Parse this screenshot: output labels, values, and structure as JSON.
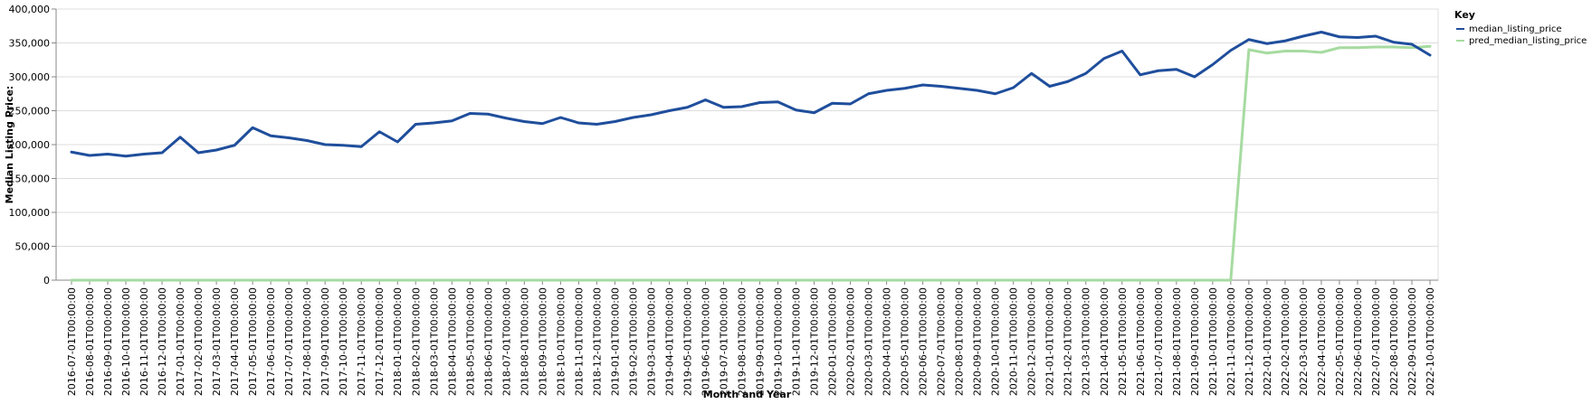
{
  "chart_data": {
    "type": "line",
    "x": [
      "2016-07-01T00:00:00",
      "2016-08-01T00:00:00",
      "2016-09-01T00:00:00",
      "2016-10-01T00:00:00",
      "2016-11-01T00:00:00",
      "2016-12-01T00:00:00",
      "2017-01-01T00:00:00",
      "2017-02-01T00:00:00",
      "2017-03-01T00:00:00",
      "2017-04-01T00:00:00",
      "2017-05-01T00:00:00",
      "2017-06-01T00:00:00",
      "2017-07-01T00:00:00",
      "2017-08-01T00:00:00",
      "2017-09-01T00:00:00",
      "2017-10-01T00:00:00",
      "2017-11-01T00:00:00",
      "2017-12-01T00:00:00",
      "2018-01-01T00:00:00",
      "2018-02-01T00:00:00",
      "2018-03-01T00:00:00",
      "2018-04-01T00:00:00",
      "2018-05-01T00:00:00",
      "2018-06-01T00:00:00",
      "2018-07-01T00:00:00",
      "2018-08-01T00:00:00",
      "2018-09-01T00:00:00",
      "2018-10-01T00:00:00",
      "2018-11-01T00:00:00",
      "2018-12-01T00:00:00",
      "2019-01-01T00:00:00",
      "2019-02-01T00:00:00",
      "2019-03-01T00:00:00",
      "2019-04-01T00:00:00",
      "2019-05-01T00:00:00",
      "2019-06-01T00:00:00",
      "2019-07-01T00:00:00",
      "2019-08-01T00:00:00",
      "2019-09-01T00:00:00",
      "2019-10-01T00:00:00",
      "2019-11-01T00:00:00",
      "2019-12-01T00:00:00",
      "2020-01-01T00:00:00",
      "2020-02-01T00:00:00",
      "2020-03-01T00:00:00",
      "2020-04-01T00:00:00",
      "2020-05-01T00:00:00",
      "2020-06-01T00:00:00",
      "2020-07-01T00:00:00",
      "2020-08-01T00:00:00",
      "2020-09-01T00:00:00",
      "2020-10-01T00:00:00",
      "2020-11-01T00:00:00",
      "2020-12-01T00:00:00",
      "2021-01-01T00:00:00",
      "2021-02-01T00:00:00",
      "2021-03-01T00:00:00",
      "2021-04-01T00:00:00",
      "2021-05-01T00:00:00",
      "2021-06-01T00:00:00",
      "2021-07-01T00:00:00",
      "2021-08-01T00:00:00",
      "2021-09-01T00:00:00",
      "2021-10-01T00:00:00",
      "2021-11-01T00:00:00",
      "2021-12-01T00:00:00",
      "2022-01-01T00:00:00",
      "2022-02-01T00:00:00",
      "2022-03-01T00:00:00",
      "2022-04-01T00:00:00",
      "2022-05-01T00:00:00",
      "2022-06-01T00:00:00",
      "2022-07-01T00:00:00",
      "2022-08-01T00:00:00",
      "2022-09-01T00:00:00",
      "2022-10-01T00:00:00"
    ],
    "series": [
      {
        "name": "median_listing_price",
        "color": "#1f4e9c",
        "values": [
          189000,
          184000,
          186000,
          183000,
          186000,
          188000,
          211000,
          188000,
          192000,
          199000,
          225000,
          213000,
          210000,
          206000,
          200000,
          199000,
          197000,
          219000,
          204000,
          230000,
          232000,
          235000,
          246000,
          245000,
          239000,
          234000,
          231000,
          240000,
          232000,
          230000,
          234000,
          240000,
          244000,
          250000,
          255000,
          266000,
          255000,
          256000,
          262000,
          263000,
          251000,
          247000,
          261000,
          260000,
          275000,
          280000,
          283000,
          288000,
          286000,
          283000,
          280000,
          275000,
          284000,
          305000,
          286000,
          293000,
          305000,
          327000,
          338000,
          303000,
          309000,
          311000,
          300000,
          318000,
          339000,
          355000,
          349000,
          353000,
          360000,
          366000,
          359000,
          358000,
          360000,
          351000,
          348000,
          332000
        ]
      },
      {
        "name": "pred_median_listing_price",
        "color": "#a6dba0",
        "values": [
          0,
          0,
          0,
          0,
          0,
          0,
          0,
          0,
          0,
          0,
          0,
          0,
          0,
          0,
          0,
          0,
          0,
          0,
          0,
          0,
          0,
          0,
          0,
          0,
          0,
          0,
          0,
          0,
          0,
          0,
          0,
          0,
          0,
          0,
          0,
          0,
          0,
          0,
          0,
          0,
          0,
          0,
          0,
          0,
          0,
          0,
          0,
          0,
          0,
          0,
          0,
          0,
          0,
          0,
          0,
          0,
          0,
          0,
          0,
          0,
          0,
          0,
          0,
          0,
          0,
          340000,
          335000,
          338000,
          338000,
          336000,
          343000,
          343000,
          344000,
          344000,
          343000,
          345000
        ]
      }
    ],
    "title": "",
    "xlabel": "Month and Year",
    "ylabel": "Median Listing Price:",
    "ylim": [
      0,
      400000
    ],
    "y_ticks": [
      0,
      50000,
      100000,
      150000,
      200000,
      250000,
      300000,
      350000,
      400000
    ],
    "y_tick_labels": [
      "0",
      "50,000",
      "100,000",
      "150,000",
      "200,000",
      "250,000",
      "300,000",
      "350,000",
      "400,000"
    ],
    "grid": true,
    "legend": {
      "title": "Key",
      "position": "right",
      "entries": [
        "median_listing_price",
        "pred_median_listing_price"
      ]
    }
  }
}
